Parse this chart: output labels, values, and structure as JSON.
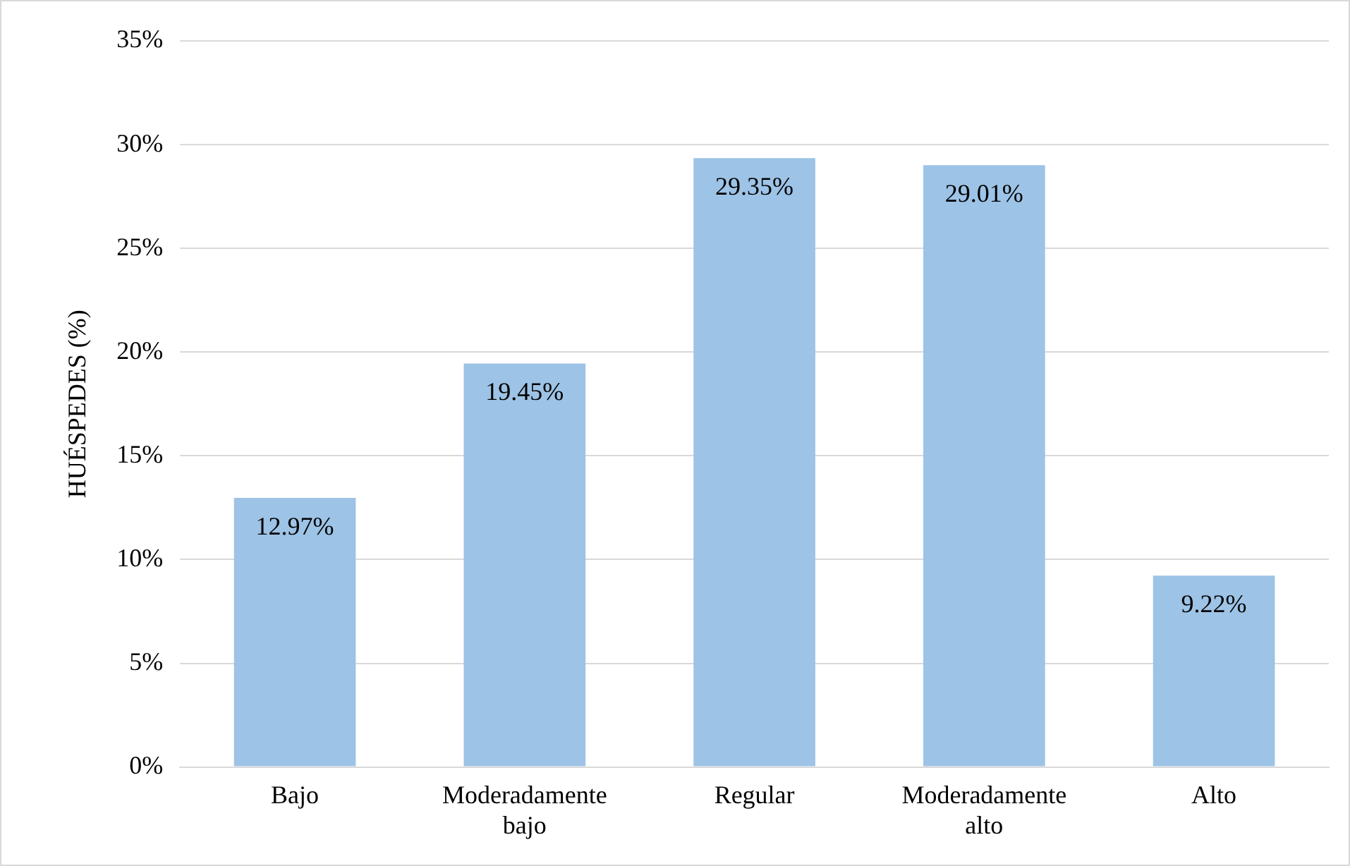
{
  "chart_data": {
    "type": "bar",
    "ylabel": "HUÉSPEDES (%)",
    "categories": [
      "Bajo",
      "Moderadamente bajo",
      "Regular",
      "Moderadamente alto",
      "Alto"
    ],
    "values": [
      12.97,
      19.45,
      29.35,
      29.01,
      9.22
    ],
    "color": "#9dc3e6",
    "value_labels": [
      "12.97%",
      "19.45%",
      "29.35%",
      "29.01%",
      "9.22%"
    ],
    "ylim": [
      0,
      35
    ],
    "yticks": [
      {
        "value": 0,
        "label": "0%"
      },
      {
        "value": 5,
        "label": "5%"
      },
      {
        "value": 10,
        "label": "10%"
      },
      {
        "value": 15,
        "label": "15%"
      },
      {
        "value": 20,
        "label": "20%"
      },
      {
        "value": 25,
        "label": "25%"
      },
      {
        "value": 30,
        "label": "30%"
      },
      {
        "value": 35,
        "label": "35%"
      }
    ],
    "grid": "y",
    "legend": false
  }
}
